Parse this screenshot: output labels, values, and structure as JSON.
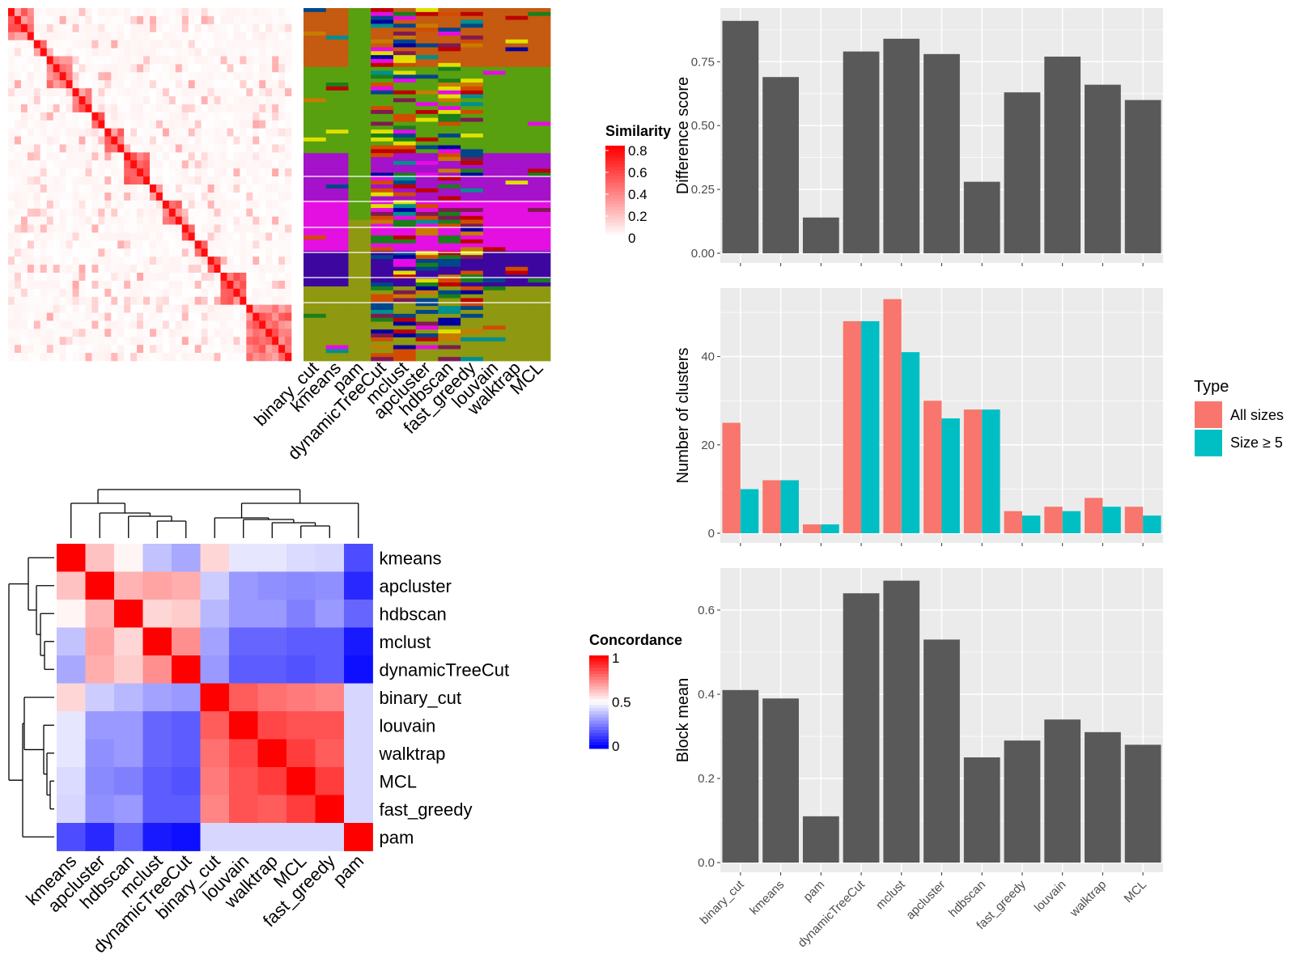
{
  "colors": {
    "red": "#FF0000",
    "blue": "#0000FF",
    "white": "#FFFFFF",
    "bar": "#595959",
    "panel_bg": "#EBEBEB",
    "grid": "#FFFFFF",
    "all_sizes": "#F8766D",
    "size_ge_5": "#00BFC4"
  },
  "similarity_heatmap": {
    "legend_title": "Similarity",
    "legend_ticks": [
      "0.8",
      "0.6",
      "0.4",
      "0.2",
      "0"
    ],
    "n_blocks": 14,
    "block_sizes": [
      0.1,
      0.04,
      0.09,
      0.06,
      0.05,
      0.08,
      0.07,
      0.06,
      0.06,
      0.05,
      0.05,
      0.05,
      0.07,
      0.17
    ]
  },
  "class_heatmap": {
    "columns": [
      "binary_cut",
      "kmeans",
      "pam",
      "dynamicTreeCut",
      "mclust",
      "apcluster",
      "hdbscan",
      "fast_greedy",
      "louvain",
      "walktrap",
      "MCL"
    ],
    "group_colors": [
      "#C55A11",
      "#58A00F",
      "#A412C9",
      "#E410E2",
      "#3D069F",
      "#8E9810"
    ],
    "accent_colors": [
      "#BF0000",
      "#0000A0",
      "#008F8F",
      "#E0E000",
      "#E60BE6",
      "#1A7F1A",
      "#C87B00",
      "#7F1A52",
      "#00468B",
      "#D24C00"
    ]
  },
  "concordance_heatmap": {
    "legend_title": "Concordance",
    "legend_ticks": [
      "1",
      "0.5",
      "0"
    ],
    "methods": [
      "kmeans",
      "apcluster",
      "hdbscan",
      "mclust",
      "dynamicTreeCut",
      "binary_cut",
      "louvain",
      "walktrap",
      "MCL",
      "fast_greedy",
      "pam"
    ],
    "matrix": [
      [
        1.0,
        0.62,
        0.52,
        0.38,
        0.33,
        0.58,
        0.45,
        0.45,
        0.43,
        0.42,
        0.15
      ],
      [
        0.62,
        1.0,
        0.65,
        0.68,
        0.66,
        0.4,
        0.3,
        0.28,
        0.27,
        0.28,
        0.08
      ],
      [
        0.52,
        0.65,
        1.0,
        0.58,
        0.6,
        0.36,
        0.3,
        0.3,
        0.25,
        0.3,
        0.2
      ],
      [
        0.38,
        0.68,
        0.58,
        1.0,
        0.72,
        0.32,
        0.2,
        0.2,
        0.18,
        0.18,
        0.05
      ],
      [
        0.33,
        0.66,
        0.6,
        0.72,
        1.0,
        0.3,
        0.18,
        0.18,
        0.16,
        0.18,
        0.03
      ],
      [
        0.58,
        0.4,
        0.36,
        0.32,
        0.3,
        1.0,
        0.82,
        0.78,
        0.76,
        0.74,
        0.42
      ],
      [
        0.45,
        0.3,
        0.3,
        0.2,
        0.18,
        0.82,
        1.0,
        0.86,
        0.84,
        0.84,
        0.42
      ],
      [
        0.45,
        0.28,
        0.3,
        0.2,
        0.18,
        0.78,
        0.86,
        1.0,
        0.88,
        0.82,
        0.42
      ],
      [
        0.43,
        0.27,
        0.25,
        0.18,
        0.16,
        0.76,
        0.84,
        0.88,
        1.0,
        0.88,
        0.42
      ],
      [
        0.42,
        0.28,
        0.3,
        0.18,
        0.18,
        0.74,
        0.84,
        0.82,
        0.88,
        1.0,
        0.42
      ],
      [
        0.15,
        0.08,
        0.2,
        0.05,
        0.03,
        0.42,
        0.42,
        0.42,
        0.42,
        0.42,
        1.0
      ]
    ]
  },
  "chart_data": [
    {
      "type": "bar",
      "categories": [
        "binary_cut",
        "kmeans",
        "pam",
        "dynamicTreeCut",
        "mclust",
        "apcluster",
        "hdbscan",
        "fast_greedy",
        "louvain",
        "walktrap",
        "MCL"
      ],
      "values": [
        0.91,
        0.69,
        0.14,
        0.79,
        0.84,
        0.78,
        0.28,
        0.63,
        0.77,
        0.66,
        0.6
      ],
      "ylabel": "Difference score",
      "yticks": [
        "0.00",
        "0.25",
        "0.50",
        "0.75"
      ],
      "ylim": [
        0,
        0.96
      ],
      "grid": true
    },
    {
      "type": "bar",
      "categories": [
        "binary_cut",
        "kmeans",
        "pam",
        "dynamicTreeCut",
        "mclust",
        "apcluster",
        "hdbscan",
        "fast_greedy",
        "louvain",
        "walktrap",
        "MCL"
      ],
      "series": [
        {
          "name": "All sizes",
          "values": [
            25,
            12,
            2,
            48,
            53,
            30,
            28,
            5,
            6,
            8,
            6
          ]
        },
        {
          "name": "Size ≥ 5",
          "values": [
            10,
            12,
            2,
            48,
            41,
            26,
            28,
            4,
            5,
            6,
            4
          ]
        }
      ],
      "ylabel": "Number of clusters",
      "yticks": [
        "0",
        "20",
        "40"
      ],
      "ylim": [
        0,
        55.5
      ],
      "legend_title": "Type",
      "legend_position": "right",
      "grid": true
    },
    {
      "type": "bar",
      "categories": [
        "binary_cut",
        "kmeans",
        "pam",
        "dynamicTreeCut",
        "mclust",
        "apcluster",
        "hdbscan",
        "fast_greedy",
        "louvain",
        "walktrap",
        "MCL"
      ],
      "values": [
        0.41,
        0.39,
        0.11,
        0.64,
        0.67,
        0.53,
        0.25,
        0.29,
        0.34,
        0.31,
        0.28
      ],
      "ylabel": "Block mean",
      "yticks": [
        "0.0",
        "0.2",
        "0.4",
        "0.6"
      ],
      "ylim": [
        0,
        0.7
      ],
      "grid": true
    }
  ]
}
